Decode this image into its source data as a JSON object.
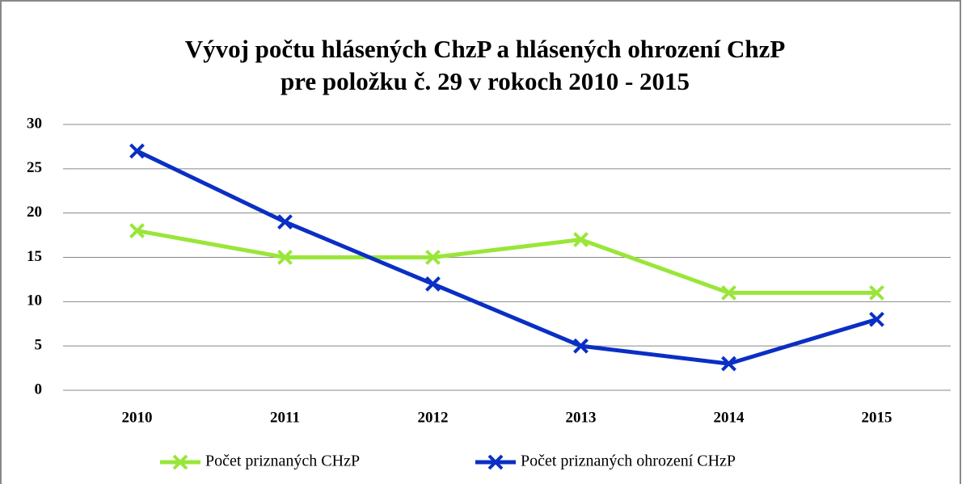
{
  "chart_data": {
    "type": "line",
    "title": [
      "Vývoj počtu hlásených ChzP a hlásených ohrození ChzP",
      "pre položku č. 29 v rokoch 2010 - 2015"
    ],
    "categories": [
      "2010",
      "2011",
      "2012",
      "2013",
      "2014",
      "2015"
    ],
    "series": [
      {
        "name": "Počet priznaných CHzP",
        "color": "#99e639",
        "values": [
          18,
          15,
          15,
          17,
          11,
          11
        ]
      },
      {
        "name": "Počet priznaných ohrození CHzP",
        "color": "#0a2fc4",
        "values": [
          27,
          19,
          12,
          5,
          3,
          8
        ]
      }
    ],
    "ylim": [
      0,
      30
    ],
    "yticks": [
      0,
      5,
      10,
      15,
      20,
      25,
      30
    ],
    "grid": true,
    "legend": "bottom"
  }
}
